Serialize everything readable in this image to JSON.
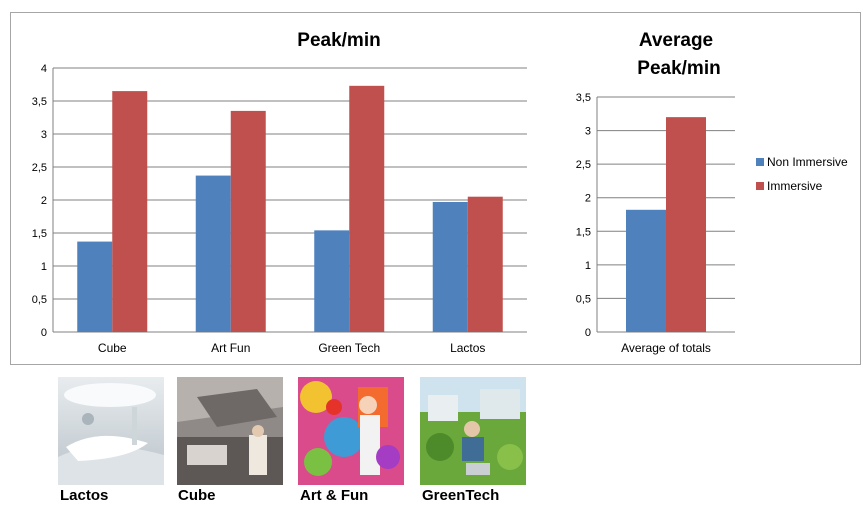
{
  "chart_data": [
    {
      "type": "bar",
      "title": "Peak/min",
      "categories": [
        "Cube",
        "Art Fun",
        "Green Tech",
        "Lactos"
      ],
      "series": [
        {
          "name": "Non Immersive",
          "values": [
            1.37,
            2.37,
            1.54,
            1.97
          ]
        },
        {
          "name": "Immersive",
          "values": [
            3.65,
            3.35,
            3.73,
            2.05
          ]
        }
      ],
      "ylim": [
        0,
        4
      ],
      "yticks": [
        "0",
        "0,5",
        "1",
        "1,5",
        "2",
        "2,5",
        "3",
        "3,5",
        "4"
      ],
      "grid": true
    },
    {
      "type": "bar",
      "title": "Average Peak/min",
      "categories": [
        "Average of totals"
      ],
      "series": [
        {
          "name": "Non Immersive",
          "values": [
            1.82
          ]
        },
        {
          "name": "Immersive",
          "values": [
            3.2
          ]
        }
      ],
      "ylim": [
        0,
        3.5
      ],
      "yticks": [
        "0",
        "0,5",
        "1",
        "1,5",
        "2",
        "2,5",
        "3",
        "3,5"
      ],
      "grid": true,
      "legend_position": "right"
    }
  ],
  "colors": {
    "non_immersive": "#4f81bd",
    "immersive": "#c0504d",
    "grid": "#808080"
  },
  "legend": {
    "non_immersive": "Non Immersive",
    "immersive": "Immersive"
  },
  "thumbnails": [
    {
      "label": "Lactos",
      "icon": "interior-white-lounge-image"
    },
    {
      "label": "Cube",
      "icon": "interior-cube-kitchen-image"
    },
    {
      "label": "Art & Fun",
      "icon": "colorful-art-collage-image"
    },
    {
      "label": "GreenTech",
      "icon": "green-garden-laptop-image"
    }
  ]
}
